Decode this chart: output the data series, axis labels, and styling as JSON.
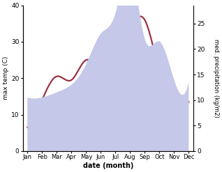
{
  "months": [
    "Jan",
    "Feb",
    "Mar",
    "Apr",
    "May",
    "Jun",
    "Jul",
    "Aug",
    "Sep",
    "Oct",
    "Nov",
    "Dec"
  ],
  "month_positions": [
    0,
    1,
    2,
    3,
    4,
    5,
    6,
    7,
    8,
    9,
    10,
    11
  ],
  "temperature": [
    6.5,
    14,
    20.5,
    19.5,
    25,
    24.5,
    35,
    35.5,
    36,
    22,
    15,
    13.5
  ],
  "precipitation": [
    10.5,
    10.5,
    11.5,
    13,
    17,
    23,
    27,
    36,
    22,
    21.5,
    14,
    13.5
  ],
  "temp_color": "#993344",
  "precip_fill_color": "#c5c8e8",
  "temp_ylim": [
    0,
    40
  ],
  "precip_ylim": [
    0,
    28.57
  ],
  "temp_yticks": [
    0,
    10,
    20,
    30,
    40
  ],
  "precip_yticks": [
    0,
    5,
    10,
    15,
    20,
    25
  ],
  "ylabel_left": "max temp (C)",
  "ylabel_right": "med. precipitation (kg/m2)",
  "xlabel": "date (month)",
  "background_color": "#ffffff",
  "line_width": 1.6
}
